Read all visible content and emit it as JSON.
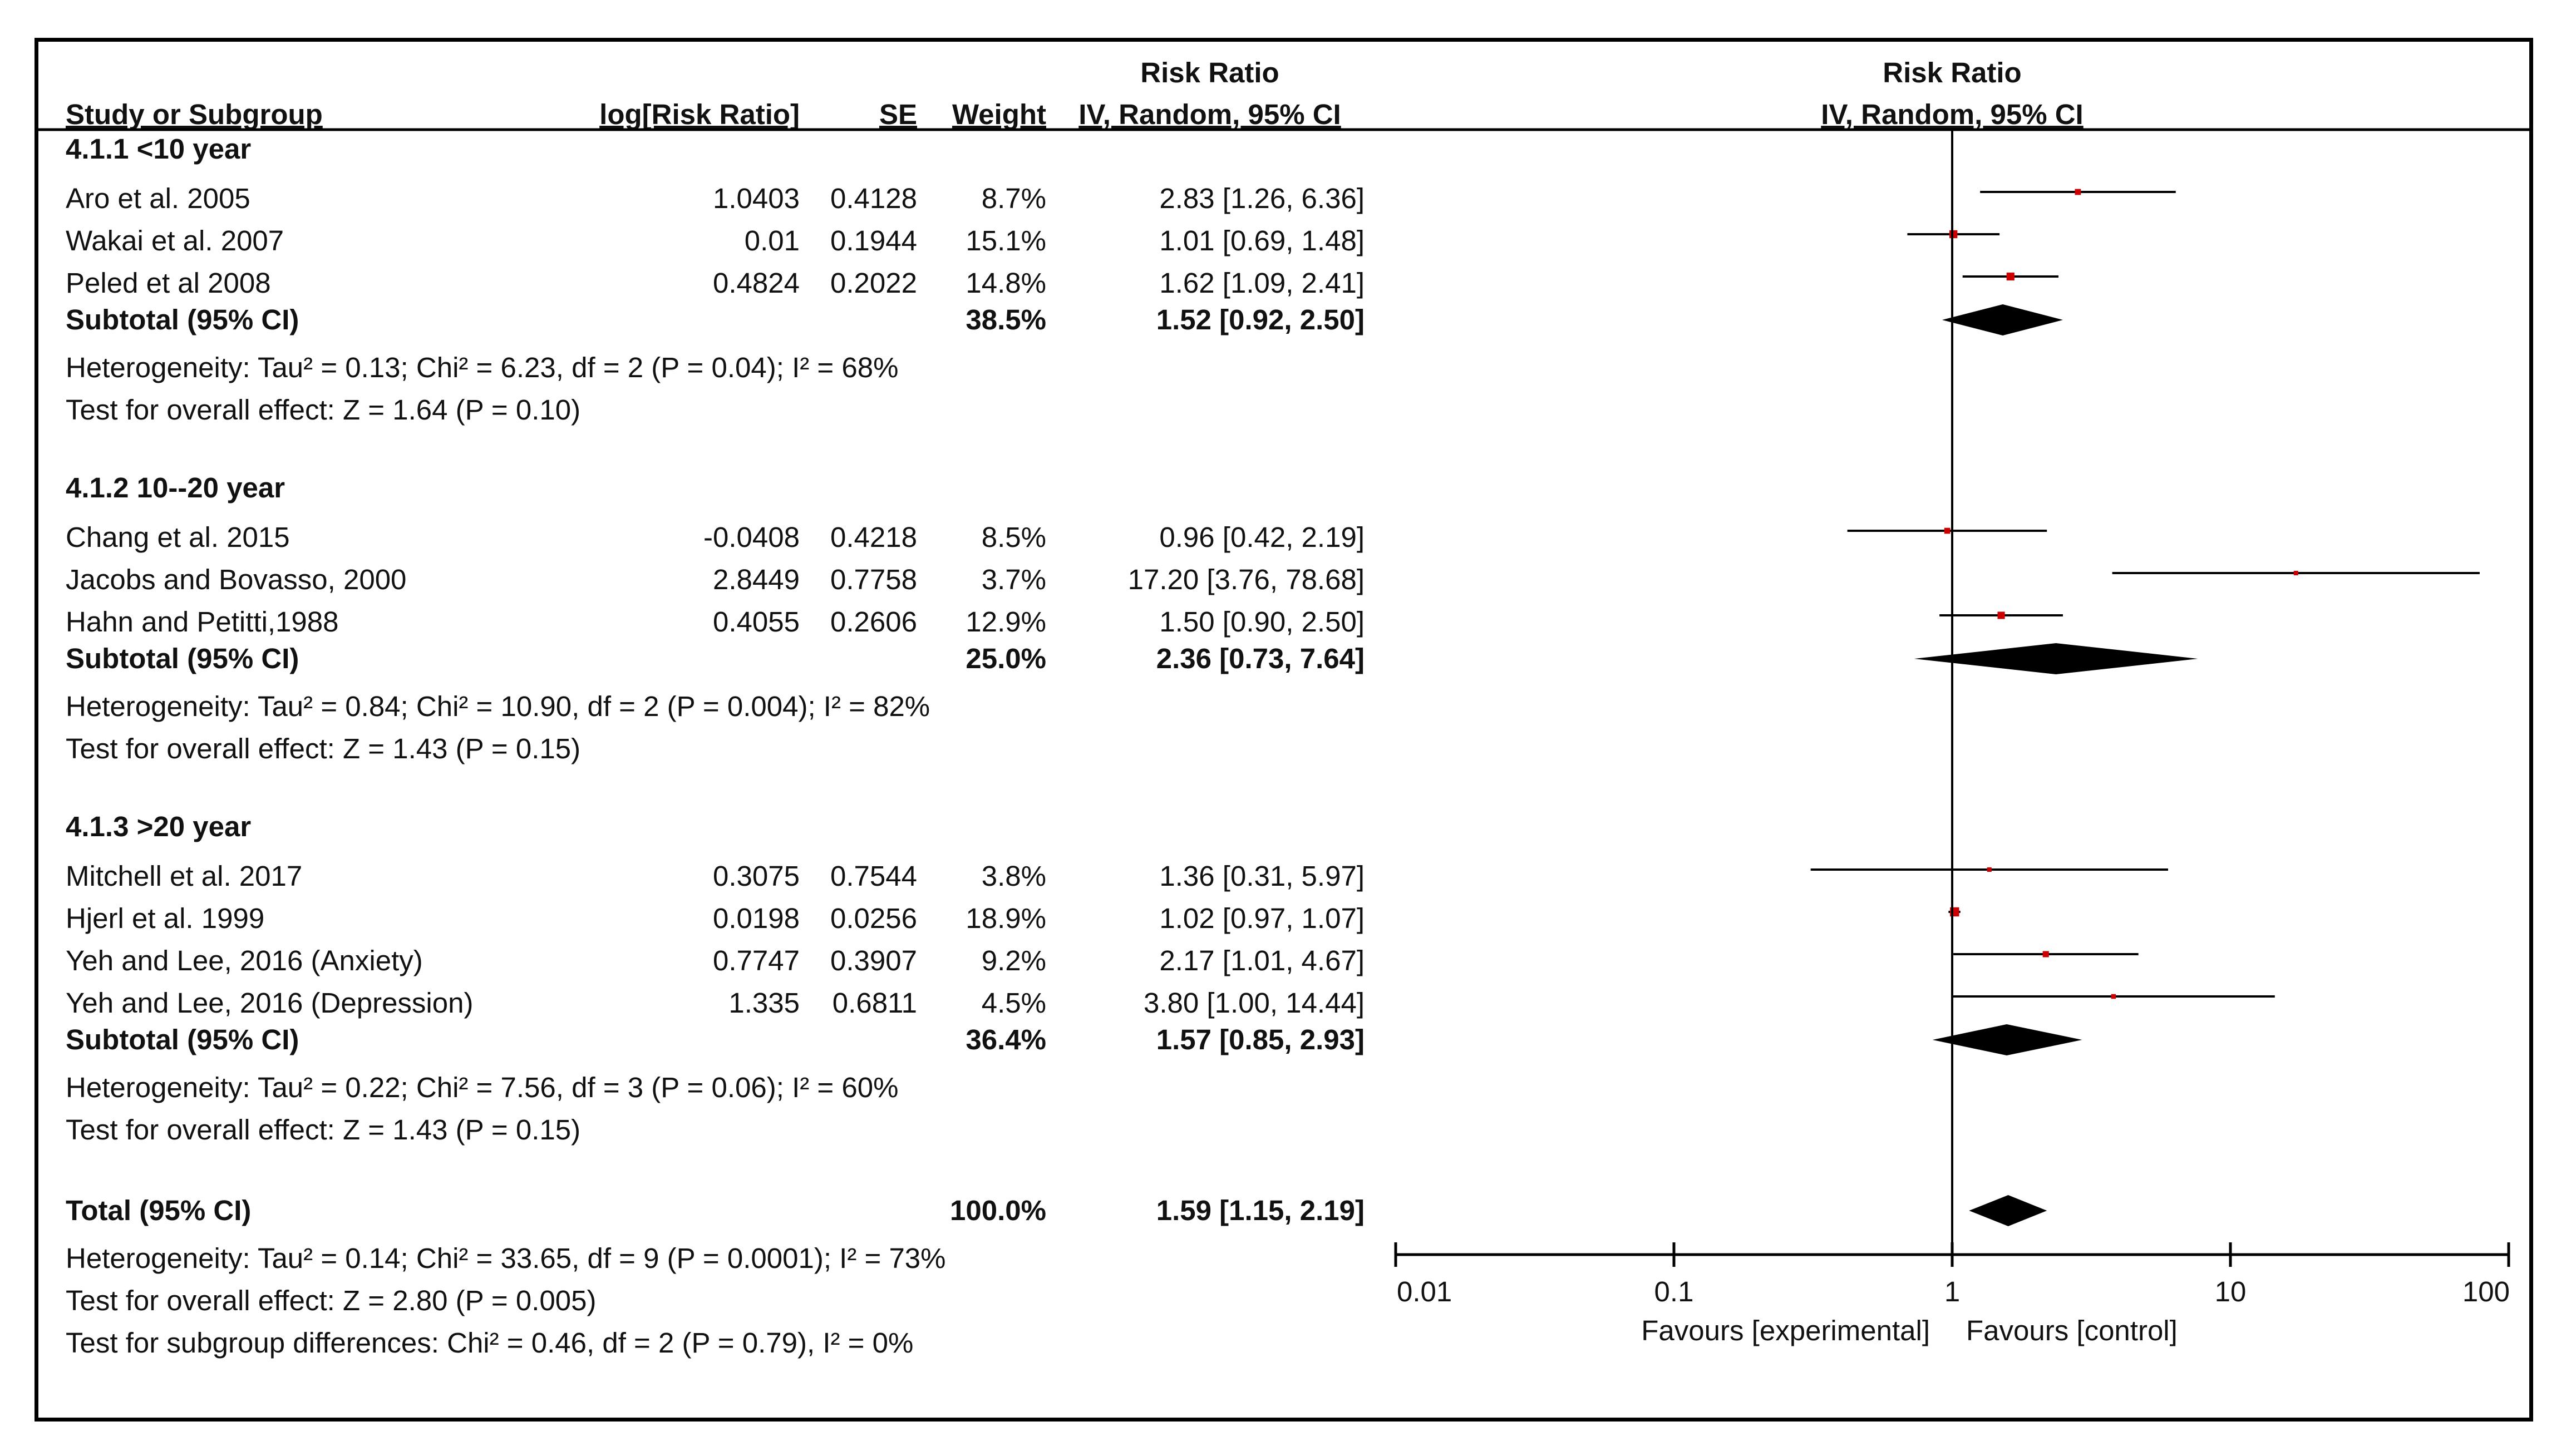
{
  "chart_data": {
    "type": "forest",
    "column_headers": {
      "study": "Study or Subgroup",
      "log_rr": "log[Risk Ratio]",
      "se": "SE",
      "weight": "Weight",
      "rr_top": "Risk Ratio",
      "rr_ci": "IV, Random, 95% CI",
      "plot_top": "Risk Ratio",
      "plot_ci": "IV, Random, 95% CI"
    },
    "subgroups": [
      {
        "title": "4.1.1 <10 year",
        "studies": [
          {
            "name": "Aro et al. 2005",
            "log_rr": "1.0403",
            "se": "0.4128",
            "weight": "8.7%",
            "ci_text": "2.83 [1.26, 6.36]",
            "rr": 2.83,
            "lo": 1.26,
            "hi": 6.36,
            "w": 8.7
          },
          {
            "name": "Wakai et al. 2007",
            "log_rr": "0.01",
            "se": "0.1944",
            "weight": "15.1%",
            "ci_text": "1.01 [0.69, 1.48]",
            "rr": 1.01,
            "lo": 0.69,
            "hi": 1.48,
            "w": 15.1
          },
          {
            "name": "Peled et al 2008",
            "log_rr": "0.4824",
            "se": "0.2022",
            "weight": "14.8%",
            "ci_text": "1.62 [1.09, 2.41]",
            "rr": 1.62,
            "lo": 1.09,
            "hi": 2.41,
            "w": 14.8
          }
        ],
        "subtotal": {
          "label": "Subtotal (95% CI)",
          "weight": "38.5%",
          "ci_text": "1.52 [0.92, 2.50]",
          "rr": 1.52,
          "lo": 0.92,
          "hi": 2.5
        },
        "heterogeneity": "Heterogeneity: Tau² = 0.13; Chi² = 6.23, df = 2 (P = 0.04); I² = 68%",
        "overall": "Test for overall effect: Z = 1.64 (P = 0.10)"
      },
      {
        "title": "4.1.2 10--20 year",
        "studies": [
          {
            "name": "Chang et al. 2015",
            "log_rr": "-0.0408",
            "se": "0.4218",
            "weight": "8.5%",
            "ci_text": "0.96 [0.42, 2.19]",
            "rr": 0.96,
            "lo": 0.42,
            "hi": 2.19,
            "w": 8.5
          },
          {
            "name": "Jacobs and Bovasso, 2000",
            "log_rr": "2.8449",
            "se": "0.7758",
            "weight": "3.7%",
            "ci_text": "17.20 [3.76, 78.68]",
            "rr": 17.2,
            "lo": 3.76,
            "hi": 78.68,
            "w": 3.7
          },
          {
            "name": "Hahn and Petitti,1988",
            "log_rr": "0.4055",
            "se": "0.2606",
            "weight": "12.9%",
            "ci_text": "1.50 [0.90, 2.50]",
            "rr": 1.5,
            "lo": 0.9,
            "hi": 2.5,
            "w": 12.9
          }
        ],
        "subtotal": {
          "label": "Subtotal (95% CI)",
          "weight": "25.0%",
          "ci_text": "2.36 [0.73, 7.64]",
          "rr": 2.36,
          "lo": 0.73,
          "hi": 7.64
        },
        "heterogeneity": "Heterogeneity: Tau² = 0.84; Chi² = 10.90, df = 2 (P = 0.004); I² = 82%",
        "overall": "Test for overall effect: Z = 1.43 (P = 0.15)"
      },
      {
        "title": "4.1.3 >20 year",
        "studies": [
          {
            "name": "Mitchell et al. 2017",
            "log_rr": "0.3075",
            "se": "0.7544",
            "weight": "3.8%",
            "ci_text": "1.36 [0.31, 5.97]",
            "rr": 1.36,
            "lo": 0.31,
            "hi": 5.97,
            "w": 3.8
          },
          {
            "name": "Hjerl et al. 1999",
            "log_rr": "0.0198",
            "se": "0.0256",
            "weight": "18.9%",
            "ci_text": "1.02 [0.97, 1.07]",
            "rr": 1.02,
            "lo": 0.97,
            "hi": 1.07,
            "w": 18.9
          },
          {
            "name": "Yeh and Lee, 2016 (Anxiety)",
            "log_rr": "0.7747",
            "se": "0.3907",
            "weight": "9.2%",
            "ci_text": "2.17 [1.01, 4.67]",
            "rr": 2.17,
            "lo": 1.01,
            "hi": 4.67,
            "w": 9.2
          },
          {
            "name": "Yeh and Lee, 2016 (Depression)",
            "log_rr": "1.335",
            "se": "0.6811",
            "weight": "4.5%",
            "ci_text": "3.80 [1.00, 14.44]",
            "rr": 3.8,
            "lo": 1.0,
            "hi": 14.44,
            "w": 4.5
          }
        ],
        "subtotal": {
          "label": "Subtotal (95% CI)",
          "weight": "36.4%",
          "ci_text": "1.57 [0.85, 2.93]",
          "rr": 1.57,
          "lo": 0.85,
          "hi": 2.93
        },
        "heterogeneity": "Heterogeneity: Tau² = 0.22; Chi² = 7.56, df = 3 (P = 0.06); I² = 60%",
        "overall": "Test for overall effect: Z = 1.43 (P = 0.15)"
      }
    ],
    "total": {
      "label": "Total (95% CI)",
      "weight": "100.0%",
      "ci_text": "1.59 [1.15, 2.19]",
      "rr": 1.59,
      "lo": 1.15,
      "hi": 2.19,
      "heterogeneity": "Heterogeneity: Tau² = 0.14; Chi² = 33.65, df = 9 (P = 0.0001); I² = 73%",
      "overall": "Test for overall effect: Z = 2.80 (P = 0.005)",
      "subgroup_diff": "Test for subgroup differences: Chi² = 0.46, df = 2 (P = 0.79), I² = 0%"
    },
    "x_axis": {
      "scale": "log",
      "range": [
        0.01,
        100
      ],
      "ticks": [
        0.01,
        0.1,
        1,
        10,
        100
      ],
      "tick_labels": [
        "0.01",
        "0.1",
        "1",
        "10",
        "100"
      ],
      "favours_left": "Favours [experimental]",
      "favours_right": "Favours [control]"
    },
    "colors": {
      "marker": "#cc0000",
      "line": "#000000",
      "diamond": "#000000"
    }
  }
}
